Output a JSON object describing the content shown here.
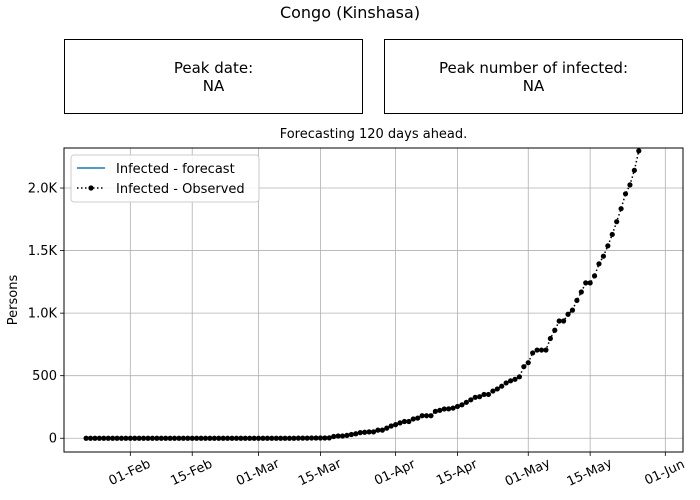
{
  "title": "Congo (Kinshasa)",
  "peak_date": {
    "label": "Peak date:",
    "value": "NA"
  },
  "peak_infected": {
    "label": "Peak number of infected:",
    "value": "NA"
  },
  "subtitle": "Forecasting 120 days ahead.",
  "chart_data": {
    "type": "line",
    "ylabel": "Persons",
    "xlim": [
      "2020-01-17",
      "2020-06-05"
    ],
    "ylim": [
      -110,
      2320
    ],
    "x_ticks": [
      {
        "date": "2020-02-01",
        "label": "01-Feb"
      },
      {
        "date": "2020-02-15",
        "label": "15-Feb"
      },
      {
        "date": "2020-03-01",
        "label": "01-Mar"
      },
      {
        "date": "2020-03-15",
        "label": "15-Mar"
      },
      {
        "date": "2020-04-01",
        "label": "01-Apr"
      },
      {
        "date": "2020-04-15",
        "label": "15-Apr"
      },
      {
        "date": "2020-05-01",
        "label": "01-May"
      },
      {
        "date": "2020-05-15",
        "label": "15-May"
      },
      {
        "date": "2020-06-01",
        "label": "01-Jun"
      }
    ],
    "y_ticks": [
      {
        "value": 0,
        "label": "0"
      },
      {
        "value": 500,
        "label": "500"
      },
      {
        "value": 1000,
        "label": "1.0K"
      },
      {
        "value": 1500,
        "label": "1.5K"
      },
      {
        "value": 2000,
        "label": "2.0K"
      }
    ],
    "grid": true,
    "legend_position": "top-left",
    "series": [
      {
        "name": "Infected - forecast",
        "color": "#1f77b4",
        "style": "solid",
        "points": []
      },
      {
        "name": "Infected - Observed",
        "color": "#000000",
        "style": "dotted",
        "marker": "circle",
        "points": [
          [
            "2020-01-22",
            0
          ],
          [
            "2020-01-23",
            0
          ],
          [
            "2020-01-24",
            0
          ],
          [
            "2020-01-25",
            0
          ],
          [
            "2020-01-26",
            0
          ],
          [
            "2020-01-27",
            0
          ],
          [
            "2020-01-28",
            0
          ],
          [
            "2020-01-29",
            0
          ],
          [
            "2020-01-30",
            0
          ],
          [
            "2020-01-31",
            0
          ],
          [
            "2020-02-01",
            0
          ],
          [
            "2020-02-02",
            0
          ],
          [
            "2020-02-03",
            0
          ],
          [
            "2020-02-04",
            0
          ],
          [
            "2020-02-05",
            0
          ],
          [
            "2020-02-06",
            0
          ],
          [
            "2020-02-07",
            0
          ],
          [
            "2020-02-08",
            0
          ],
          [
            "2020-02-09",
            0
          ],
          [
            "2020-02-10",
            0
          ],
          [
            "2020-02-11",
            0
          ],
          [
            "2020-02-12",
            0
          ],
          [
            "2020-02-13",
            0
          ],
          [
            "2020-02-14",
            0
          ],
          [
            "2020-02-15",
            0
          ],
          [
            "2020-02-16",
            0
          ],
          [
            "2020-02-17",
            0
          ],
          [
            "2020-02-18",
            0
          ],
          [
            "2020-02-19",
            0
          ],
          [
            "2020-02-20",
            0
          ],
          [
            "2020-02-21",
            0
          ],
          [
            "2020-02-22",
            0
          ],
          [
            "2020-02-23",
            0
          ],
          [
            "2020-02-24",
            0
          ],
          [
            "2020-02-25",
            0
          ],
          [
            "2020-02-26",
            0
          ],
          [
            "2020-02-27",
            0
          ],
          [
            "2020-02-28",
            0
          ],
          [
            "2020-02-29",
            0
          ],
          [
            "2020-03-01",
            0
          ],
          [
            "2020-03-02",
            0
          ],
          [
            "2020-03-03",
            0
          ],
          [
            "2020-03-04",
            0
          ],
          [
            "2020-03-05",
            0
          ],
          [
            "2020-03-06",
            0
          ],
          [
            "2020-03-07",
            0
          ],
          [
            "2020-03-08",
            0
          ],
          [
            "2020-03-09",
            0
          ],
          [
            "2020-03-10",
            1
          ],
          [
            "2020-03-11",
            1
          ],
          [
            "2020-03-12",
            1
          ],
          [
            "2020-03-13",
            2
          ],
          [
            "2020-03-14",
            2
          ],
          [
            "2020-03-15",
            2
          ],
          [
            "2020-03-16",
            2
          ],
          [
            "2020-03-17",
            3
          ],
          [
            "2020-03-18",
            14
          ],
          [
            "2020-03-19",
            18
          ],
          [
            "2020-03-20",
            18
          ],
          [
            "2020-03-21",
            23
          ],
          [
            "2020-03-22",
            30
          ],
          [
            "2020-03-23",
            36
          ],
          [
            "2020-03-24",
            45
          ],
          [
            "2020-03-25",
            48
          ],
          [
            "2020-03-26",
            51
          ],
          [
            "2020-03-27",
            51
          ],
          [
            "2020-03-28",
            65
          ],
          [
            "2020-03-29",
            65
          ],
          [
            "2020-03-30",
            81
          ],
          [
            "2020-03-31",
            98
          ],
          [
            "2020-04-01",
            109
          ],
          [
            "2020-04-02",
            123
          ],
          [
            "2020-04-03",
            134
          ],
          [
            "2020-04-04",
            134
          ],
          [
            "2020-04-05",
            154
          ],
          [
            "2020-04-06",
            161
          ],
          [
            "2020-04-07",
            180
          ],
          [
            "2020-04-08",
            180
          ],
          [
            "2020-04-09",
            180
          ],
          [
            "2020-04-10",
            215
          ],
          [
            "2020-04-11",
            223
          ],
          [
            "2020-04-12",
            234
          ],
          [
            "2020-04-13",
            235
          ],
          [
            "2020-04-14",
            241
          ],
          [
            "2020-04-15",
            254
          ],
          [
            "2020-04-16",
            267
          ],
          [
            "2020-04-17",
            287
          ],
          [
            "2020-04-18",
            307
          ],
          [
            "2020-04-19",
            327
          ],
          [
            "2020-04-20",
            332
          ],
          [
            "2020-04-21",
            350
          ],
          [
            "2020-04-22",
            350
          ],
          [
            "2020-04-23",
            377
          ],
          [
            "2020-04-24",
            394
          ],
          [
            "2020-04-25",
            416
          ],
          [
            "2020-04-26",
            442
          ],
          [
            "2020-04-27",
            459
          ],
          [
            "2020-04-28",
            471
          ],
          [
            "2020-04-29",
            491
          ],
          [
            "2020-04-30",
            572
          ],
          [
            "2020-05-01",
            604
          ],
          [
            "2020-05-02",
            682
          ],
          [
            "2020-05-03",
            705
          ],
          [
            "2020-05-04",
            705
          ],
          [
            "2020-05-05",
            705
          ],
          [
            "2020-05-06",
            797
          ],
          [
            "2020-05-07",
            863
          ],
          [
            "2020-05-08",
            937
          ],
          [
            "2020-05-09",
            937
          ],
          [
            "2020-05-10",
            991
          ],
          [
            "2020-05-11",
            1024
          ],
          [
            "2020-05-12",
            1102
          ],
          [
            "2020-05-13",
            1169
          ],
          [
            "2020-05-14",
            1242
          ],
          [
            "2020-05-15",
            1242
          ],
          [
            "2020-05-16",
            1298
          ],
          [
            "2020-05-17",
            1394
          ],
          [
            "2020-05-18",
            1455
          ],
          [
            "2020-05-19",
            1538
          ],
          [
            "2020-05-20",
            1629
          ],
          [
            "2020-05-21",
            1731
          ],
          [
            "2020-05-22",
            1835
          ],
          [
            "2020-05-23",
            1954
          ],
          [
            "2020-05-24",
            2025
          ],
          [
            "2020-05-25",
            2141
          ],
          [
            "2020-05-26",
            2297
          ]
        ]
      }
    ]
  }
}
